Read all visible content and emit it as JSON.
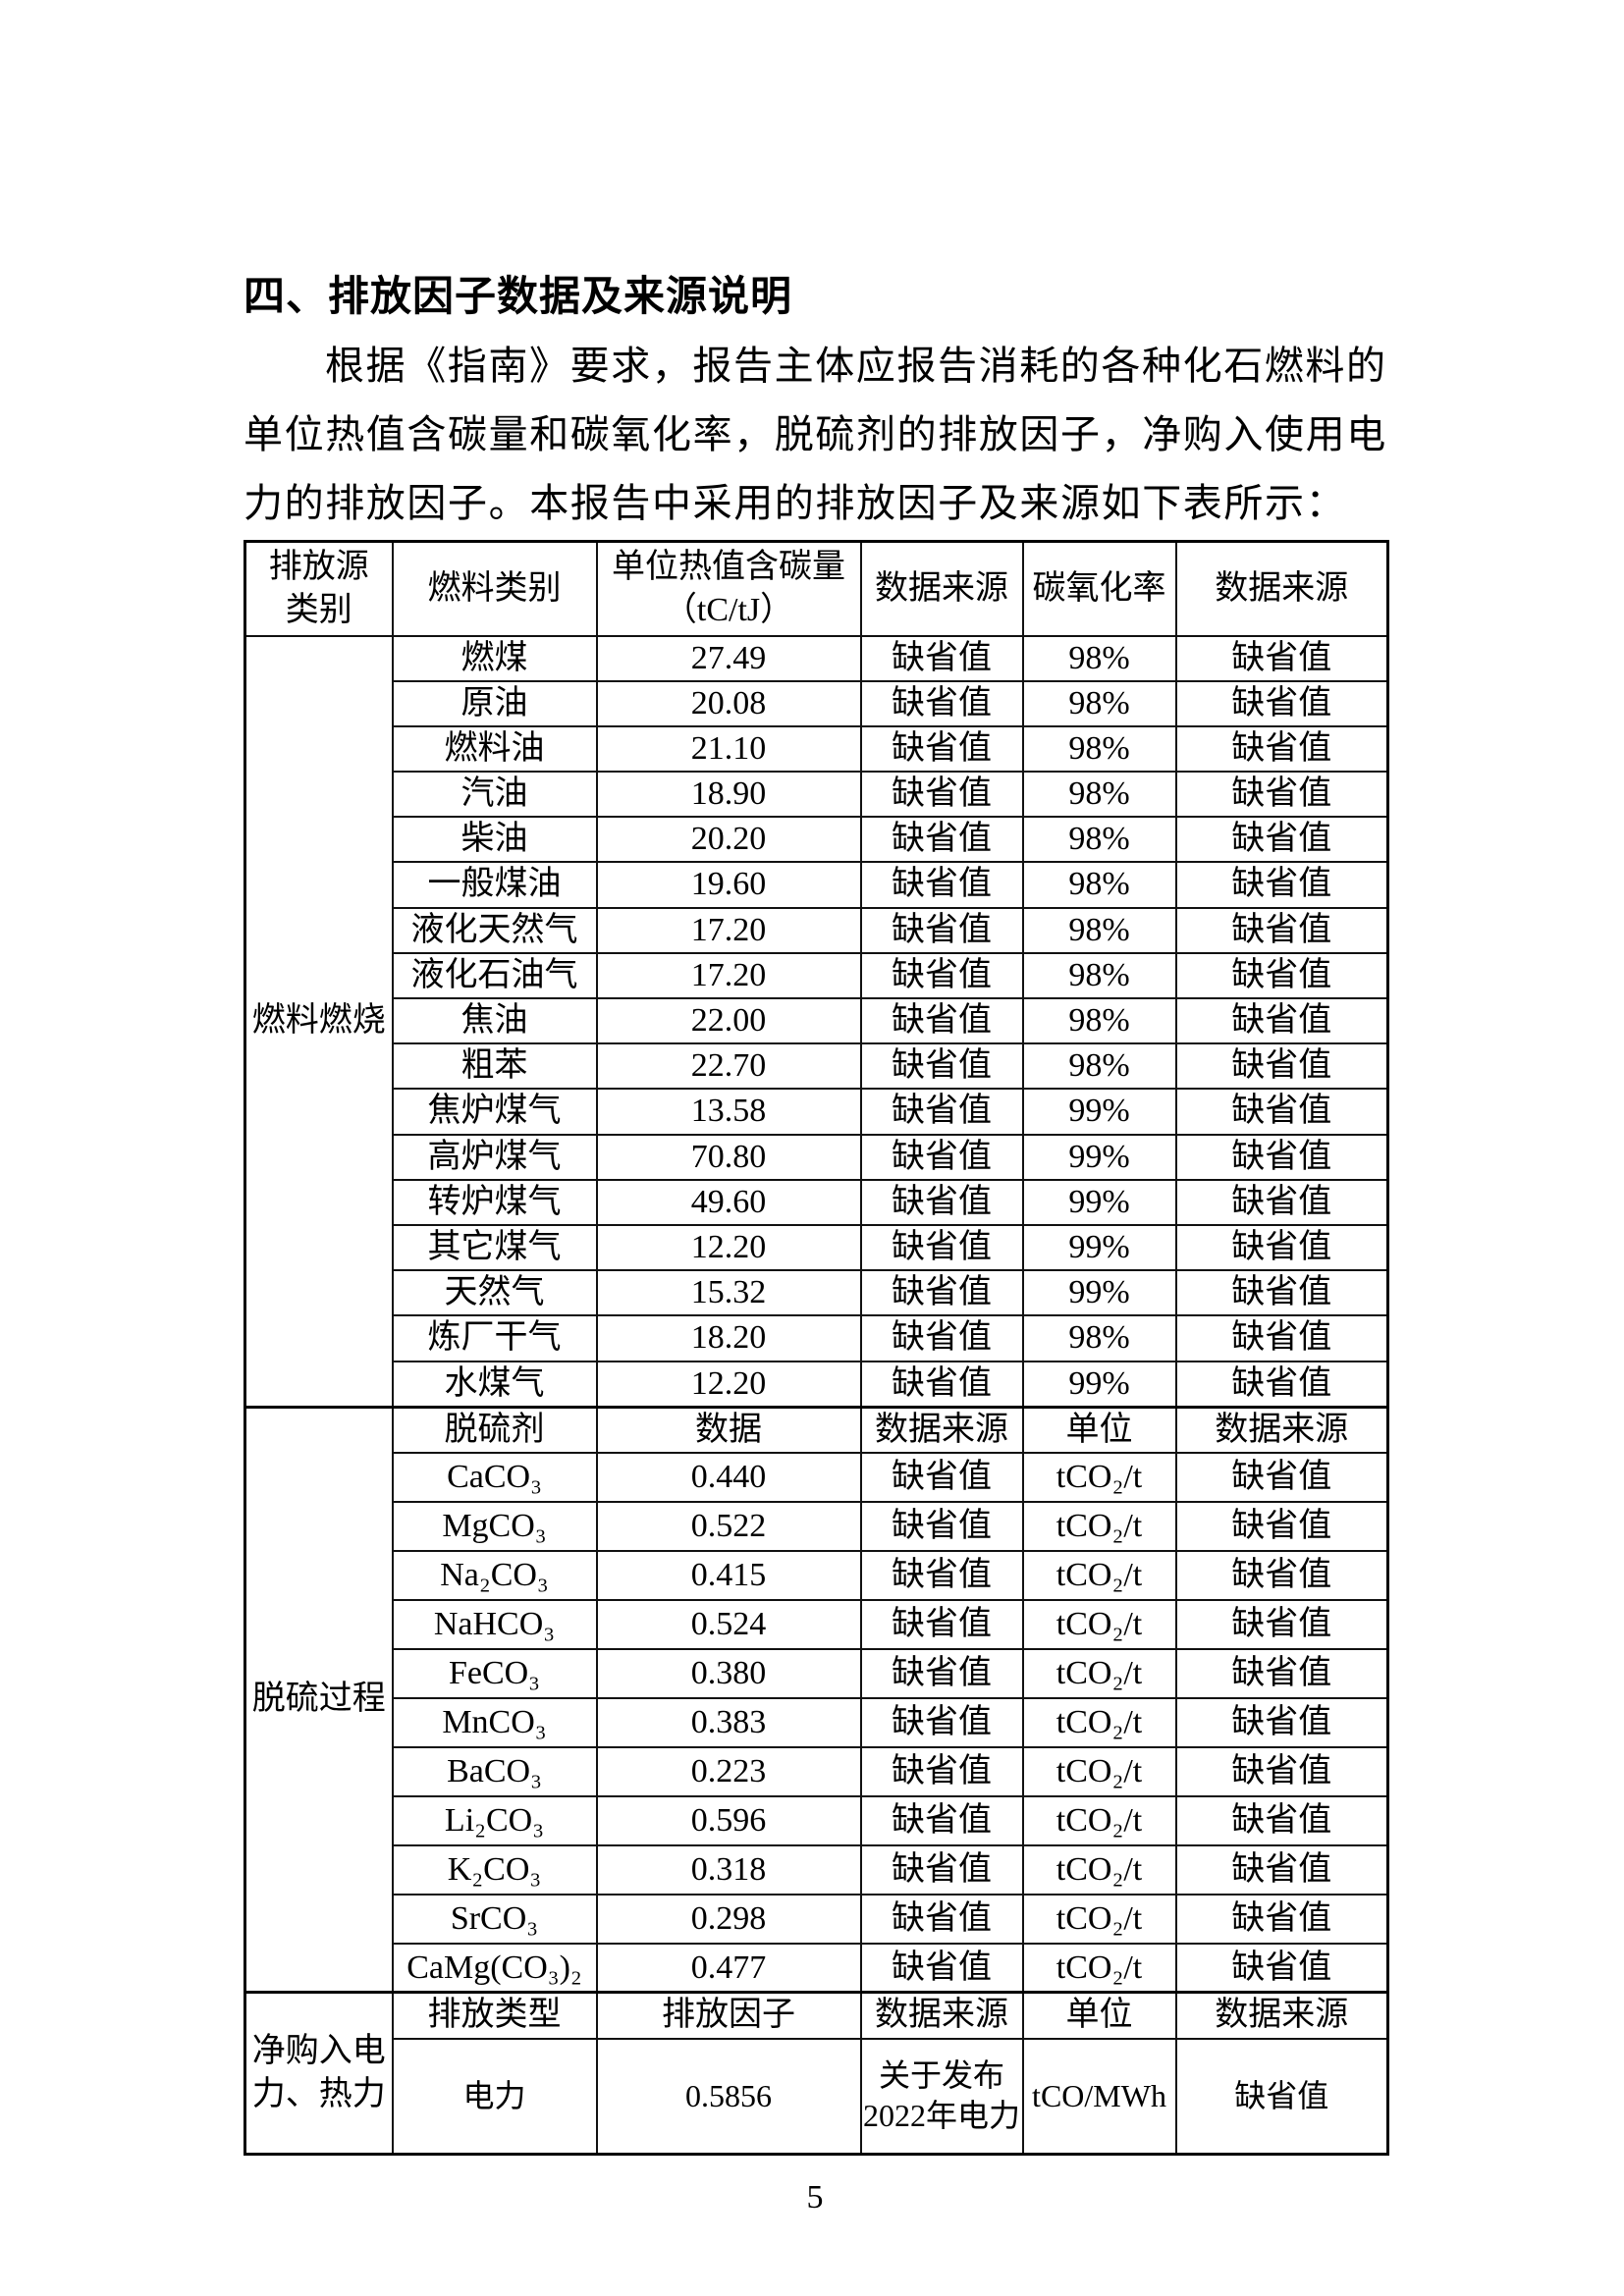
{
  "document": {
    "heading": "四、排放因子数据及来源说明",
    "paragraph": {
      "line1": "根据《指南》要求，报告主体应报告消耗的各种化石燃料的",
      "line2": "单位热值含碳量和碳氧化率，脱硫剂的排放因子，净购入使用电",
      "line3": "力的排放因子。本报告中采用的排放因子及来源如下表所示："
    },
    "page_number": "5"
  },
  "table": {
    "main_header": {
      "col1": "排放源\n类别",
      "col2": "燃料类别",
      "col3": "单位热值含碳量\n（tC/tJ）",
      "col4": "数据来源",
      "col5": "碳氧化率",
      "col6": "数据来源"
    },
    "sections": [
      {
        "group_label": "燃料燃烧",
        "rows": [
          [
            "燃煤",
            "27.49",
            "缺省值",
            "98%",
            "缺省值"
          ],
          [
            "原油",
            "20.08",
            "缺省值",
            "98%",
            "缺省值"
          ],
          [
            "燃料油",
            "21.10",
            "缺省值",
            "98%",
            "缺省值"
          ],
          [
            "汽油",
            "18.90",
            "缺省值",
            "98%",
            "缺省值"
          ],
          [
            "柴油",
            "20.20",
            "缺省值",
            "98%",
            "缺省值"
          ],
          [
            "一般煤油",
            "19.60",
            "缺省值",
            "98%",
            "缺省值"
          ],
          [
            "液化天然气",
            "17.20",
            "缺省值",
            "98%",
            "缺省值"
          ],
          [
            "液化石油气",
            "17.20",
            "缺省值",
            "98%",
            "缺省值"
          ],
          [
            "焦油",
            "22.00",
            "缺省值",
            "98%",
            "缺省值"
          ],
          [
            "粗苯",
            "22.70",
            "缺省值",
            "98%",
            "缺省值"
          ],
          [
            "焦炉煤气",
            "13.58",
            "缺省值",
            "99%",
            "缺省值"
          ],
          [
            "高炉煤气",
            "70.80",
            "缺省值",
            "99%",
            "缺省值"
          ],
          [
            "转炉煤气",
            "49.60",
            "缺省值",
            "99%",
            "缺省值"
          ],
          [
            "其它煤气",
            "12.20",
            "缺省值",
            "99%",
            "缺省值"
          ],
          [
            "天然气",
            "15.32",
            "缺省值",
            "99%",
            "缺省值"
          ],
          [
            "炼厂干气",
            "18.20",
            "缺省值",
            "98%",
            "缺省值"
          ],
          [
            "水煤气",
            "12.20",
            "缺省值",
            "99%",
            "缺省值"
          ]
        ]
      },
      {
        "group_label": "脱硫过程",
        "subheader": [
          "脱硫剂",
          "数据",
          "数据来源",
          "单位",
          "数据来源"
        ],
        "rows": [
          [
            "CaCO₃",
            "0.440",
            "缺省值",
            "tCO₂/t",
            "缺省值"
          ],
          [
            "MgCO₃",
            "0.522",
            "缺省值",
            "tCO₂/t",
            "缺省值"
          ],
          [
            "Na₂CO₃",
            "0.415",
            "缺省值",
            "tCO₂/t",
            "缺省值"
          ],
          [
            "NaHCO₃",
            "0.524",
            "缺省值",
            "tCO₂/t",
            "缺省值"
          ],
          [
            "FeCO₃",
            "0.380",
            "缺省值",
            "tCO₂/t",
            "缺省值"
          ],
          [
            "MnCO₃",
            "0.383",
            "缺省值",
            "tCO₂/t",
            "缺省值"
          ],
          [
            "BaCO₃",
            "0.223",
            "缺省值",
            "tCO₂/t",
            "缺省值"
          ],
          [
            "Li₂CO₃",
            "0.596",
            "缺省值",
            "tCO₂/t",
            "缺省值"
          ],
          [
            "K₂CO₃",
            "0.318",
            "缺省值",
            "tCO₂/t",
            "缺省值"
          ],
          [
            "SrCO₃",
            "0.298",
            "缺省值",
            "tCO₂/t",
            "缺省值"
          ],
          [
            "CaMg(CO₃)₂",
            "0.477",
            "缺省值",
            "tCO₂/t",
            "缺省值"
          ]
        ]
      },
      {
        "group_label": "净购入电\n力、热力",
        "subheader": [
          "排放类型",
          "排放因子",
          "数据来源",
          "单位",
          "数据来源"
        ],
        "rows": [
          [
            "电力",
            "0.5856",
            "关于发布\n2022年电力",
            "tCO/MWh",
            "缺省值"
          ]
        ]
      }
    ]
  }
}
